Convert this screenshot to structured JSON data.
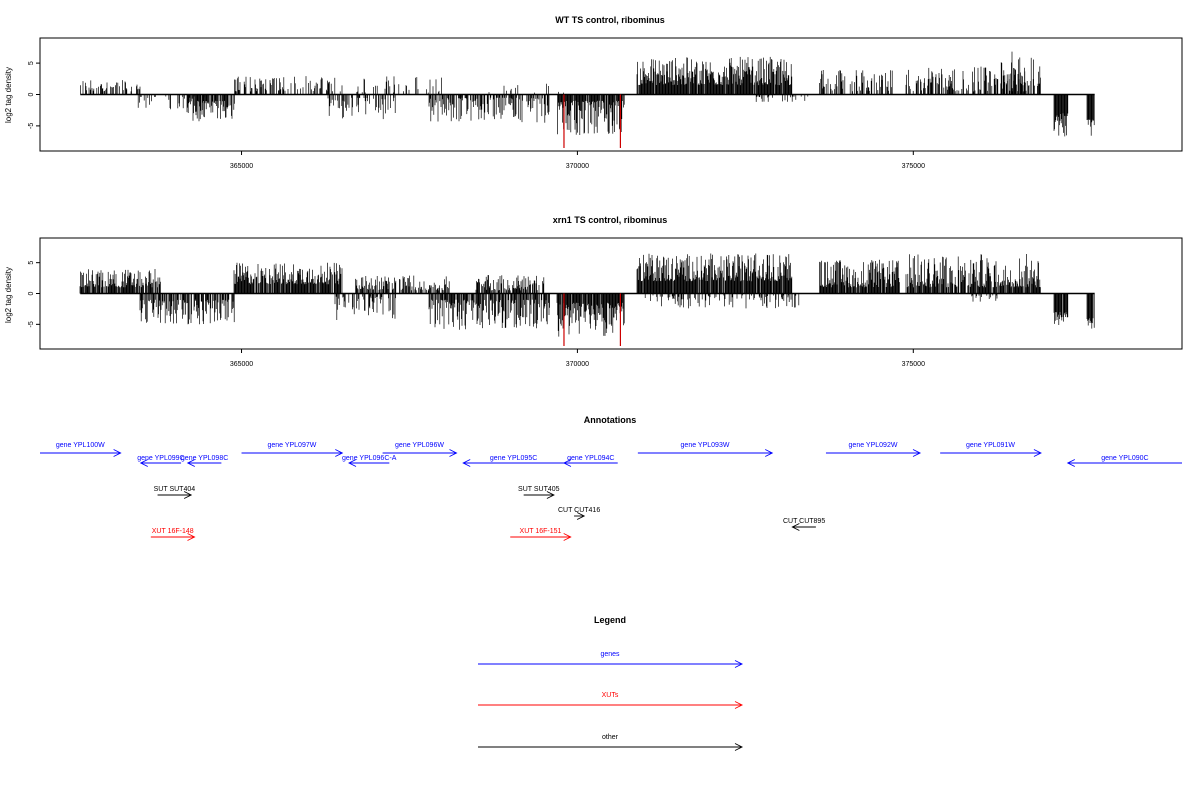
{
  "chart_data": [
    {
      "type": "bar",
      "title": "WT TS control, ribominus",
      "ylabel": "log2 tag density",
      "xlabel": "",
      "xlim": [
        362000,
        379000
      ],
      "ylim": [
        -9,
        9
      ],
      "xticks": [
        365000,
        370000,
        375000
      ],
      "xtick_labels": [
        "365000",
        "370000",
        "375000"
      ],
      "yticks": [
        -5,
        0,
        5
      ],
      "ytick_labels": [
        "-5",
        "0",
        "5"
      ],
      "grid": false,
      "segments": [
        {
          "from": 362600,
          "to": 363500,
          "sign": 1,
          "min": 0.5,
          "max": 2.5,
          "density": 0.45
        },
        {
          "from": 363400,
          "to": 364500,
          "sign": -1,
          "min": 0.3,
          "max": 2.5,
          "density": 0.3
        },
        {
          "from": 364200,
          "to": 364900,
          "sign": -1,
          "min": 1.0,
          "max": 4.3,
          "density": 0.8
        },
        {
          "from": 364900,
          "to": 366500,
          "sign": 1,
          "min": 0.5,
          "max": 3.0,
          "density": 0.45
        },
        {
          "from": 366300,
          "to": 367300,
          "sign": -1,
          "min": 0.5,
          "max": 4.3,
          "density": 0.35
        },
        {
          "from": 366700,
          "to": 368000,
          "sign": 1,
          "min": 0.3,
          "max": 3.0,
          "density": 0.25
        },
        {
          "from": 367800,
          "to": 369600,
          "sign": -1,
          "min": 0.5,
          "max": 4.5,
          "density": 0.6
        },
        {
          "from": 368600,
          "to": 369800,
          "sign": 1,
          "min": 0.3,
          "max": 2.5,
          "density": 0.12
        },
        {
          "from": 369700,
          "to": 370700,
          "sign": -1,
          "min": 1.0,
          "max": 6.5,
          "density": 0.9
        },
        {
          "from": 370900,
          "to": 373200,
          "sign": 1,
          "min": 1.5,
          "max": 6.0,
          "density": 0.95
        },
        {
          "from": 372600,
          "to": 373500,
          "sign": -1,
          "min": 0.3,
          "max": 1.2,
          "density": 0.2
        },
        {
          "from": 373600,
          "to": 374700,
          "sign": 1,
          "min": 0.5,
          "max": 4.0,
          "density": 0.5
        },
        {
          "from": 374900,
          "to": 376900,
          "sign": 1,
          "min": 0.5,
          "max": 4.5,
          "density": 0.6
        },
        {
          "from": 376300,
          "to": 376800,
          "sign": 1,
          "min": 3.0,
          "max": 7.0,
          "density": 0.35
        },
        {
          "from": 377100,
          "to": 377300,
          "sign": -1,
          "min": 3.0,
          "max": 7.0,
          "density": 0.95
        },
        {
          "from": 377600,
          "to": 377700,
          "sign": -1,
          "min": 4.0,
          "max": 7.0,
          "density": 0.95
        }
      ],
      "highlight_x": [
        369800,
        370640
      ],
      "highlight_depth": -9,
      "highlight_color": "#cc0000"
    },
    {
      "type": "bar",
      "title": "xrn1 TS control, ribominus",
      "ylabel": "log2 tag density",
      "xlabel": "",
      "xlim": [
        362000,
        379000
      ],
      "ylim": [
        -9,
        9
      ],
      "xticks": [
        365000,
        370000,
        375000
      ],
      "xtick_labels": [
        "365000",
        "370000",
        "375000"
      ],
      "yticks": [
        -5,
        0,
        5
      ],
      "ytick_labels": [
        "-5",
        "0",
        "5"
      ],
      "grid": false,
      "segments": [
        {
          "from": 362600,
          "to": 363800,
          "sign": 1,
          "min": 1.0,
          "max": 4.0,
          "density": 0.85
        },
        {
          "from": 363500,
          "to": 364900,
          "sign": -1,
          "min": 1.0,
          "max": 5.0,
          "density": 0.7
        },
        {
          "from": 364900,
          "to": 366500,
          "sign": 1,
          "min": 1.5,
          "max": 5.0,
          "density": 0.9
        },
        {
          "from": 366400,
          "to": 367300,
          "sign": -1,
          "min": 0.5,
          "max": 4.5,
          "density": 0.55
        },
        {
          "from": 366700,
          "to": 368100,
          "sign": 1,
          "min": 0.5,
          "max": 3.0,
          "density": 0.6
        },
        {
          "from": 367800,
          "to": 369600,
          "sign": -1,
          "min": 1.0,
          "max": 6.0,
          "density": 0.75
        },
        {
          "from": 368500,
          "to": 369500,
          "sign": 1,
          "min": 0.5,
          "max": 3.0,
          "density": 0.7
        },
        {
          "from": 369700,
          "to": 370700,
          "sign": -1,
          "min": 1.5,
          "max": 7.0,
          "density": 0.95
        },
        {
          "from": 370900,
          "to": 373200,
          "sign": 1,
          "min": 2.0,
          "max": 6.5,
          "density": 0.95
        },
        {
          "from": 371000,
          "to": 373300,
          "sign": -1,
          "min": 0.3,
          "max": 2.5,
          "density": 0.35
        },
        {
          "from": 373600,
          "to": 374800,
          "sign": 1,
          "min": 1.0,
          "max": 5.5,
          "density": 0.9
        },
        {
          "from": 374900,
          "to": 376900,
          "sign": 1,
          "min": 1.0,
          "max": 6.5,
          "density": 0.85
        },
        {
          "from": 375800,
          "to": 376300,
          "sign": -1,
          "min": 0.3,
          "max": 1.5,
          "density": 0.3
        },
        {
          "from": 377100,
          "to": 377300,
          "sign": -1,
          "min": 3.0,
          "max": 5.5,
          "density": 0.95
        },
        {
          "from": 377600,
          "to": 377700,
          "sign": -1,
          "min": 4.0,
          "max": 6.0,
          "density": 0.95
        }
      ],
      "highlight_x": [
        369800,
        370640
      ],
      "highlight_depth": -9,
      "highlight_color": "#cc0000"
    }
  ],
  "annotations": {
    "title": "Annotations",
    "features": [
      {
        "label": "gene YPL100W",
        "start": 362000,
        "end": 363200,
        "strand": "+",
        "row": 0,
        "color": "#0000ff"
      },
      {
        "label": "gene YPL099C",
        "start": 363500,
        "end": 364100,
        "strand": "-",
        "row": 1,
        "color": "#0000ff"
      },
      {
        "label": "gene YPL098C",
        "start": 364200,
        "end": 364700,
        "strand": "-",
        "row": 1,
        "color": "#0000ff"
      },
      {
        "label": "gene YPL097W",
        "start": 365000,
        "end": 366500,
        "strand": "+",
        "row": 0,
        "color": "#0000ff"
      },
      {
        "label": "gene YPL096C-A",
        "start": 366600,
        "end": 367200,
        "strand": "-",
        "row": 1,
        "color": "#0000ff"
      },
      {
        "label": "gene YPL096W",
        "start": 367100,
        "end": 368200,
        "strand": "+",
        "row": 0,
        "color": "#0000ff"
      },
      {
        "label": "gene YPL095C",
        "start": 368300,
        "end": 369800,
        "strand": "-",
        "row": 1,
        "color": "#0000ff"
      },
      {
        "label": "gene YPL094C",
        "start": 369800,
        "end": 370600,
        "strand": "-",
        "row": 1,
        "color": "#0000ff"
      },
      {
        "label": "gene YPL093W",
        "start": 370900,
        "end": 372900,
        "strand": "+",
        "row": 0,
        "color": "#0000ff"
      },
      {
        "label": "gene YPL092W",
        "start": 373700,
        "end": 375100,
        "strand": "+",
        "row": 0,
        "color": "#0000ff"
      },
      {
        "label": "gene YPL091W",
        "start": 375400,
        "end": 376900,
        "strand": "+",
        "row": 0,
        "color": "#0000ff"
      },
      {
        "label": "gene YPL090C",
        "start": 377300,
        "end": 379000,
        "strand": "-",
        "row": 1,
        "color": "#0000ff"
      },
      {
        "label": "SUT SUT404",
        "start": 363750,
        "end": 364250,
        "strand": "+",
        "row": 2,
        "color": "#000000"
      },
      {
        "label": "SUT SUT405",
        "start": 369200,
        "end": 369650,
        "strand": "+",
        "row": 2,
        "color": "#000000"
      },
      {
        "label": "CUT CUT416",
        "start": 369950,
        "end": 370100,
        "strand": "+",
        "row": 3,
        "color": "#000000"
      },
      {
        "label": "CUT CUT895",
        "start": 373200,
        "end": 373550,
        "strand": "-",
        "row": 4,
        "color": "#000000"
      },
      {
        "label": "XUT 16F-148",
        "start": 363650,
        "end": 364300,
        "strand": "+",
        "row": 5,
        "color": "#ff0000"
      },
      {
        "label": "XUT 16F-151",
        "start": 369000,
        "end": 369900,
        "strand": "+",
        "row": 5,
        "color": "#ff0000"
      }
    ]
  },
  "legend": {
    "title": "Legend",
    "items": [
      {
        "label": "genes",
        "color": "#0000ff"
      },
      {
        "label": "XUTs",
        "color": "#ff0000"
      },
      {
        "label": "other",
        "color": "#000000"
      }
    ]
  }
}
